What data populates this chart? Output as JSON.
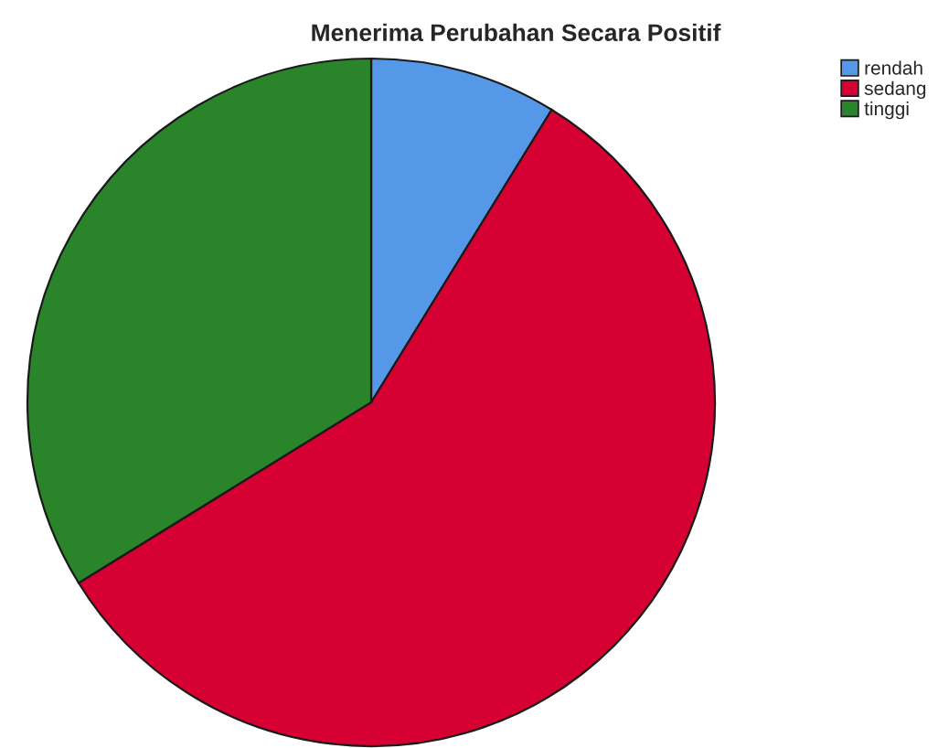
{
  "chart_data": {
    "type": "pie",
    "title": "Menerima Perubahan Secara Positif",
    "categories": [
      "rendah",
      "sedang",
      "tinggi"
    ],
    "values": [
      8.8,
      57.4,
      33.8
    ],
    "colors": [
      "#5698e8",
      "#d60032",
      "#2a852a"
    ],
    "legend": "top right"
  }
}
